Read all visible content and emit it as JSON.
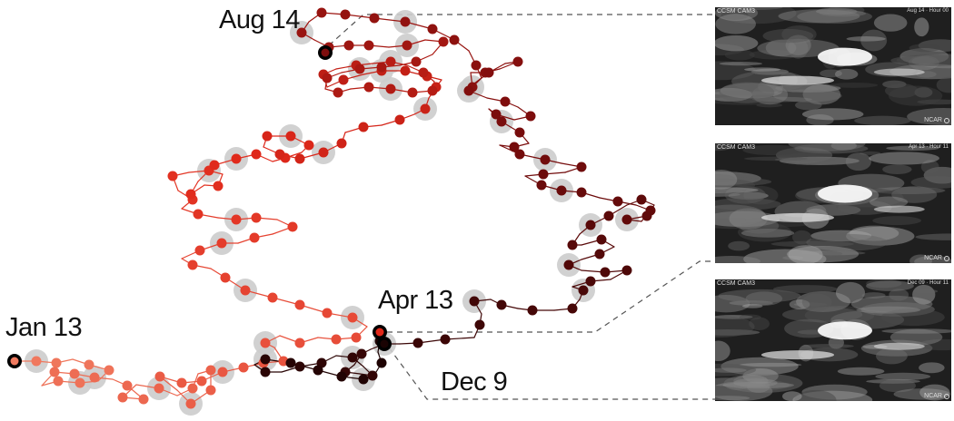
{
  "labels": {
    "jan13": "Jan 13",
    "aug14": "Aug 14",
    "apr13": "Apr 13",
    "dec9": "Dec 9"
  },
  "thumbnails": [
    {
      "title": "CCSM CAM3",
      "time": "Aug 14 · Hour 00",
      "brand": "NCAR"
    },
    {
      "title": "CCSM CAM3",
      "time": "Apr 13 · Hour 11",
      "brand": "NCAR"
    },
    {
      "title": "CCSM CAM3",
      "time": "Dec 09 · Hour 11",
      "brand": "NCAR"
    }
  ],
  "colors": {
    "start": "#f07a5f",
    "mid": "#e0281a",
    "late": "#7e0d0d",
    "end": "#1a0303",
    "halo": "#cccccc",
    "connector": "#555555"
  }
}
